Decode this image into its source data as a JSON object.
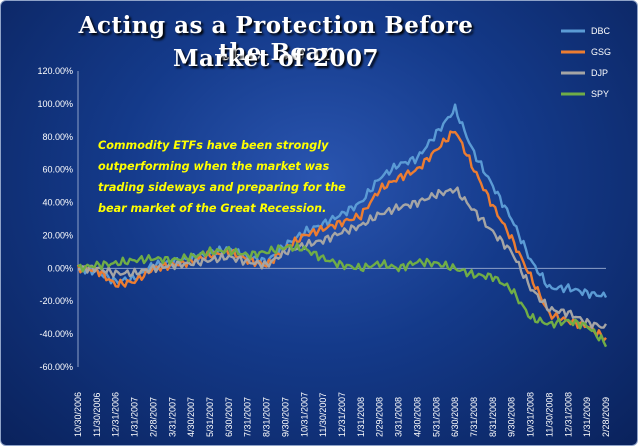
{
  "chart_data": {
    "type": "line",
    "title_lines": [
      "Acting as a Protection Before the Bear",
      "Market of 2007"
    ],
    "annotation": "Commodity ETFs have been strongly outperforming when the market was trading sideways and preparing for the bear market of the Great Recession.",
    "xlabel": "",
    "ylabel": "",
    "ylim": [
      -60,
      120
    ],
    "ytick_labels": [
      "120.00%",
      "100.00%",
      "80.00%",
      "60.00%",
      "40.00%",
      "20.00%",
      "0.00%",
      "-20.00%",
      "-40.00%",
      "-60.00%"
    ],
    "x_tick_labels": [
      "10/30/2006",
      "11/30/2006",
      "12/31/2006",
      "1/31/2007",
      "2/28/2007",
      "3/31/2007",
      "4/30/2007",
      "5/31/2007",
      "6/30/2007",
      "7/31/2007",
      "8/31/2007",
      "9/30/2007",
      "10/31/2007",
      "11/30/2007",
      "12/31/2007",
      "1/31/2008",
      "2/29/2008",
      "3/31/2008",
      "4/30/2008",
      "5/31/2008",
      "6/30/2008",
      "7/31/2008",
      "8/31/2008",
      "9/30/2008",
      "10/31/2008",
      "11/30/2008",
      "12/31/2008",
      "1/31/2009",
      "2/28/2009"
    ],
    "grid": false,
    "legend_position": "top-right",
    "series": [
      {
        "name": "DBC",
        "color": "#5b9bd5",
        "values": [
          0,
          -2,
          -8,
          -6,
          2,
          4,
          6,
          9,
          12,
          7,
          4,
          14,
          22,
          27,
          33,
          40,
          55,
          63,
          67,
          82,
          97,
          70,
          50,
          30,
          5,
          -12,
          -12,
          -15,
          -17
        ]
      },
      {
        "name": "GSG",
        "color": "#ed7d31",
        "values": [
          0,
          -1,
          -10,
          -8,
          0,
          2,
          4,
          8,
          10,
          5,
          2,
          12,
          20,
          24,
          28,
          32,
          48,
          55,
          60,
          72,
          84,
          60,
          38,
          18,
          -5,
          -28,
          -32,
          -35,
          -43
        ]
      },
      {
        "name": "DJP",
        "color": "#a5a5a5",
        "values": [
          0,
          0,
          -3,
          -3,
          0,
          2,
          3,
          5,
          7,
          4,
          2,
          10,
          14,
          17,
          22,
          26,
          33,
          37,
          40,
          45,
          48,
          35,
          22,
          10,
          -12,
          -25,
          -27,
          -33,
          -36
        ]
      },
      {
        "name": "SPY",
        "color": "#70ad47",
        "values": [
          0,
          2,
          3,
          5,
          6,
          5,
          7,
          10,
          11,
          8,
          10,
          13,
          12,
          6,
          2,
          0,
          3,
          0,
          4,
          3,
          0,
          -4,
          -5,
          -13,
          -30,
          -34,
          -32,
          -35,
          -46
        ]
      }
    ]
  }
}
